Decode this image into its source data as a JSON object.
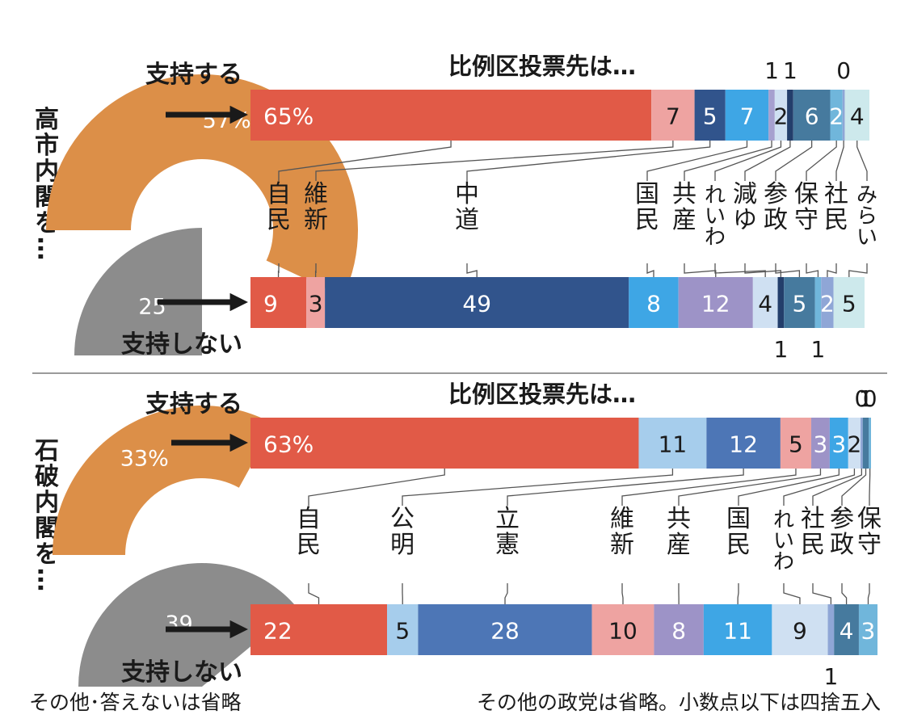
{
  "notes": {
    "left": "その他･答えないは省略",
    "right": "その他の政党は省略。小数点以下は四捨五入"
  },
  "colors": {
    "jimin": "#e15a47",
    "pink": "#eea3a1",
    "navy": "#31548c",
    "mid_blue": "#4d76b6",
    "sky": "#3ea6e5",
    "light_blue": "#a6cdec",
    "pale_blue": "#cfe0f2",
    "purple": "#9d93c7",
    "dark_navy": "#233e6b",
    "steel": "#467a9e",
    "teal": "#70b6db",
    "mint": "#cde9ec",
    "support": "#dc8f48",
    "nonsupport": "#8c8c8c",
    "ink": "#1a1a1a"
  },
  "chart_data": [
    {
      "type": "bar",
      "group_label": "高市内閣を…",
      "title": "比例区投票先は…",
      "support_label": "支持する",
      "nonsupport_label": "支持しない",
      "support_pct": 57,
      "nonsupport_pct": 25,
      "support_display": "57%",
      "nonsupport_display": "25",
      "party_labels": [
        {
          "name": "自民",
          "rows": [
            "自民"
          ]
        },
        {
          "name": "維新",
          "rows": [
            "維新"
          ]
        },
        {
          "name": "中道",
          "rows": [
            "中道"
          ]
        },
        {
          "name": "国民",
          "rows": [
            "国民"
          ]
        },
        {
          "name": "共産",
          "rows": [
            "共産"
          ]
        },
        {
          "name": "れいわ",
          "rows": [
            "れいわ"
          ]
        },
        {
          "name": "減ゆ",
          "rows": [
            "減ゆ"
          ]
        },
        {
          "name": "参政",
          "rows": [
            "参政"
          ]
        },
        {
          "name": "保守",
          "rows": [
            "保守"
          ]
        },
        {
          "name": "社民",
          "rows": [
            "社民"
          ]
        },
        {
          "name": "みらい",
          "rows": [
            "みらい"
          ]
        }
      ],
      "series": [
        {
          "name": "支持する",
          "segments": [
            {
              "party": "自民",
              "value": 65,
              "display": "65%",
              "color": "#e15a47"
            },
            {
              "party": "維新",
              "value": 7,
              "display": "7",
              "color": "#eea3a1"
            },
            {
              "party": "中道",
              "value": 5,
              "display": "5",
              "color": "#31548c"
            },
            {
              "party": "国民",
              "value": 7,
              "display": "7",
              "color": "#3ea6e5"
            },
            {
              "party": "共産",
              "value": 1,
              "display": "1",
              "color": "#a6a0cf"
            },
            {
              "party": "れいわ",
              "value": 2,
              "display": "2",
              "color": "#cfe0f2"
            },
            {
              "party": "減ゆ",
              "value": 1,
              "display": "1",
              "color": "#233e6b"
            },
            {
              "party": "参政",
              "value": 6,
              "display": "6",
              "color": "#467a9e"
            },
            {
              "party": "保守",
              "value": 2,
              "display": "2",
              "color": "#70b6db"
            },
            {
              "party": "社民",
              "value": 0,
              "display": "0",
              "color": "#8fa6d6"
            },
            {
              "party": "みらい",
              "value": 4,
              "display": "4",
              "color": "#cde9ec"
            }
          ]
        },
        {
          "name": "支持しない",
          "segments": [
            {
              "party": "自民",
              "value": 9,
              "display": "9",
              "color": "#e15a47"
            },
            {
              "party": "維新",
              "value": 3,
              "display": "3",
              "color": "#eea3a1"
            },
            {
              "party": "中道",
              "value": 49,
              "display": "49",
              "color": "#31548c"
            },
            {
              "party": "国民",
              "value": 8,
              "display": "8",
              "color": "#3ea6e5"
            },
            {
              "party": "共産",
              "value": 12,
              "display": "12",
              "color": "#9d93c7"
            },
            {
              "party": "れいわ",
              "value": 4,
              "display": "4",
              "color": "#cfe0f2"
            },
            {
              "party": "減ゆ",
              "value": 1,
              "display": "1",
              "color": "#233e6b"
            },
            {
              "party": "参政",
              "value": 5,
              "display": "5",
              "color": "#467a9e"
            },
            {
              "party": "保守",
              "value": 1,
              "display": "1",
              "color": "#70b6db"
            },
            {
              "party": "社民",
              "value": 2,
              "display": "2",
              "color": "#8fa6d6"
            },
            {
              "party": "みらい",
              "value": 5,
              "display": "5",
              "color": "#cde9ec"
            }
          ]
        }
      ]
    },
    {
      "type": "bar",
      "group_label": "石破内閣を…",
      "title": "比例区投票先は…",
      "support_label": "支持する",
      "nonsupport_label": "支持しない",
      "support_pct": 33,
      "nonsupport_pct": 39,
      "support_display": "33%",
      "nonsupport_display": "39",
      "party_labels": [
        {
          "name": "自民",
          "rows": [
            "自民"
          ]
        },
        {
          "name": "公明",
          "rows": [
            "公明"
          ]
        },
        {
          "name": "立憲",
          "rows": [
            "立憲"
          ]
        },
        {
          "name": "維新",
          "rows": [
            "維新"
          ]
        },
        {
          "name": "共産",
          "rows": [
            "共産"
          ]
        },
        {
          "name": "国民",
          "rows": [
            "国民"
          ]
        },
        {
          "name": "れいわ",
          "rows": [
            "れいわ"
          ]
        },
        {
          "name": "社民",
          "rows": [
            "社民"
          ]
        },
        {
          "name": "参政",
          "rows": [
            "参政"
          ]
        },
        {
          "name": "保守",
          "rows": [
            "保守"
          ]
        }
      ],
      "series": [
        {
          "name": "支持する",
          "segments": [
            {
              "party": "自民",
              "value": 63,
              "display": "63%",
              "color": "#e15a47"
            },
            {
              "party": "公明",
              "value": 11,
              "display": "11",
              "color": "#a6cdec"
            },
            {
              "party": "立憲",
              "value": 12,
              "display": "12",
              "color": "#4d76b6"
            },
            {
              "party": "維新",
              "value": 5,
              "display": "5",
              "color": "#eea3a1"
            },
            {
              "party": "共産",
              "value": 3,
              "display": "3",
              "color": "#9d93c7"
            },
            {
              "party": "国民",
              "value": 3,
              "display": "3",
              "color": "#3ea6e5"
            },
            {
              "party": "れいわ",
              "value": 2,
              "display": "2",
              "color": "#cfe0f2"
            },
            {
              "party": "社民",
              "value": 0,
              "display": "0",
              "color": "#8fa6d6"
            },
            {
              "party": "参政",
              "value": 1,
              "display": "1",
              "color": "#467a9e"
            },
            {
              "party": "保守",
              "value": 0,
              "display": "0",
              "color": "#70b6db"
            }
          ]
        },
        {
          "name": "支持しない",
          "segments": [
            {
              "party": "自民",
              "value": 22,
              "display": "22",
              "color": "#e15a47"
            },
            {
              "party": "公明",
              "value": 5,
              "display": "5",
              "color": "#a6cdec"
            },
            {
              "party": "立憲",
              "value": 28,
              "display": "28",
              "color": "#4d76b6"
            },
            {
              "party": "維新",
              "value": 10,
              "display": "10",
              "color": "#eea3a1"
            },
            {
              "party": "共産",
              "value": 8,
              "display": "8",
              "color": "#9d93c7"
            },
            {
              "party": "国民",
              "value": 11,
              "display": "11",
              "color": "#3ea6e5"
            },
            {
              "party": "れいわ",
              "value": 9,
              "display": "9",
              "color": "#cfe0f2"
            },
            {
              "party": "社民",
              "value": 1,
              "display": "1",
              "color": "#8fa6d6"
            },
            {
              "party": "参政",
              "value": 4,
              "display": "4",
              "color": "#467a9e"
            },
            {
              "party": "保守",
              "value": 3,
              "display": "3",
              "color": "#70b6db"
            }
          ]
        }
      ]
    }
  ]
}
